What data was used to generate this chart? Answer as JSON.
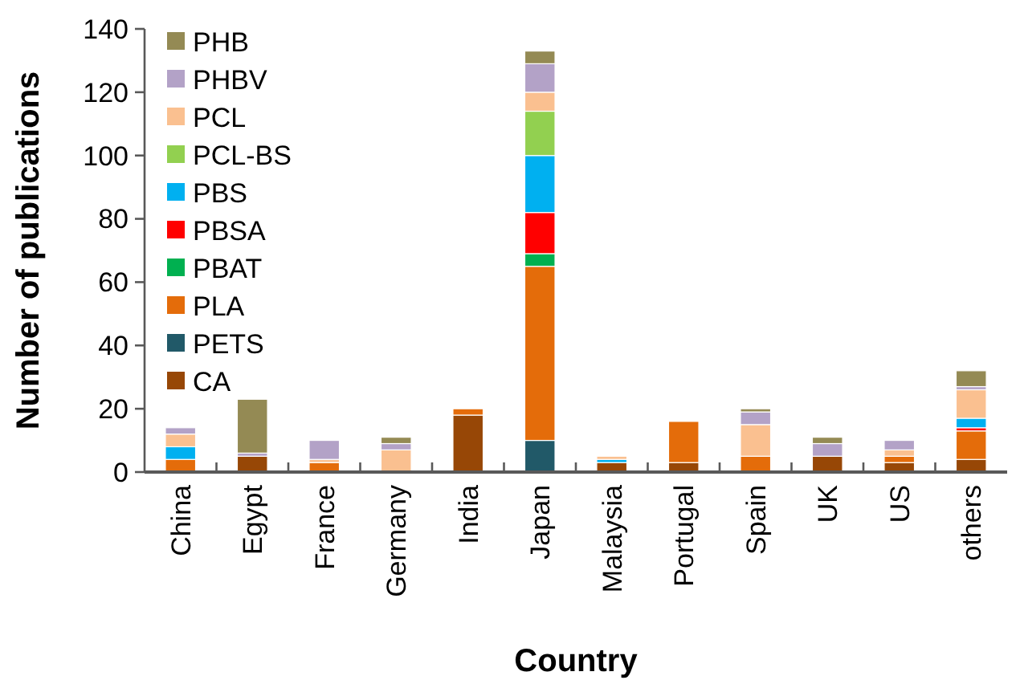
{
  "chart_data": {
    "type": "bar",
    "stacked": true,
    "xlabel": "Country",
    "ylabel": "Number of publications",
    "categories": [
      "China",
      "Egypt",
      "France",
      "Germany",
      "India",
      "Japan",
      "Malaysia",
      "Portugal",
      "Spain",
      "UK",
      "US",
      "others"
    ],
    "series": [
      {
        "name": "CA",
        "color": "#974706",
        "values": [
          0,
          5,
          0,
          0,
          18,
          0,
          3,
          3,
          0,
          5,
          3,
          4
        ]
      },
      {
        "name": "PETS",
        "color": "#215968",
        "values": [
          0,
          0,
          0,
          0,
          0,
          10,
          0,
          0,
          0,
          0,
          0,
          0
        ]
      },
      {
        "name": "PLA",
        "color": "#e46c0a",
        "values": [
          4,
          0,
          3,
          0,
          2,
          55,
          0,
          13,
          5,
          0,
          2,
          9
        ]
      },
      {
        "name": "PBAT",
        "color": "#00b050",
        "values": [
          0,
          0,
          0,
          0,
          0,
          4,
          0,
          0,
          0,
          0,
          0,
          0
        ]
      },
      {
        "name": "PBSA",
        "color": "#ff0000",
        "values": [
          0,
          0,
          0,
          0,
          0,
          13,
          0,
          0,
          0,
          0,
          0,
          1
        ]
      },
      {
        "name": "PBS",
        "color": "#00b0f0",
        "values": [
          4,
          0,
          0,
          0,
          0,
          18,
          1,
          0,
          0,
          0,
          0,
          3
        ]
      },
      {
        "name": "PCL-BS",
        "color": "#92d050",
        "values": [
          0,
          0,
          0,
          0,
          0,
          14,
          0,
          0,
          0,
          0,
          0,
          0
        ]
      },
      {
        "name": "PCL",
        "color": "#fac090",
        "values": [
          4,
          0,
          1,
          7,
          0,
          6,
          1,
          0,
          10,
          0,
          2,
          9
        ]
      },
      {
        "name": "PHBV",
        "color": "#b3a2c7",
        "values": [
          2,
          1,
          6,
          2,
          0,
          9,
          0,
          0,
          4,
          4,
          3,
          1
        ]
      },
      {
        "name": "PHB",
        "color": "#948a54",
        "values": [
          0,
          17,
          0,
          2,
          0,
          4,
          0,
          0,
          1,
          2,
          0,
          5
        ]
      }
    ],
    "ylim": [
      0,
      140
    ],
    "yticks": [
      0,
      20,
      40,
      60,
      80,
      100,
      120,
      140
    ],
    "grid": false,
    "legend": "top left"
  }
}
